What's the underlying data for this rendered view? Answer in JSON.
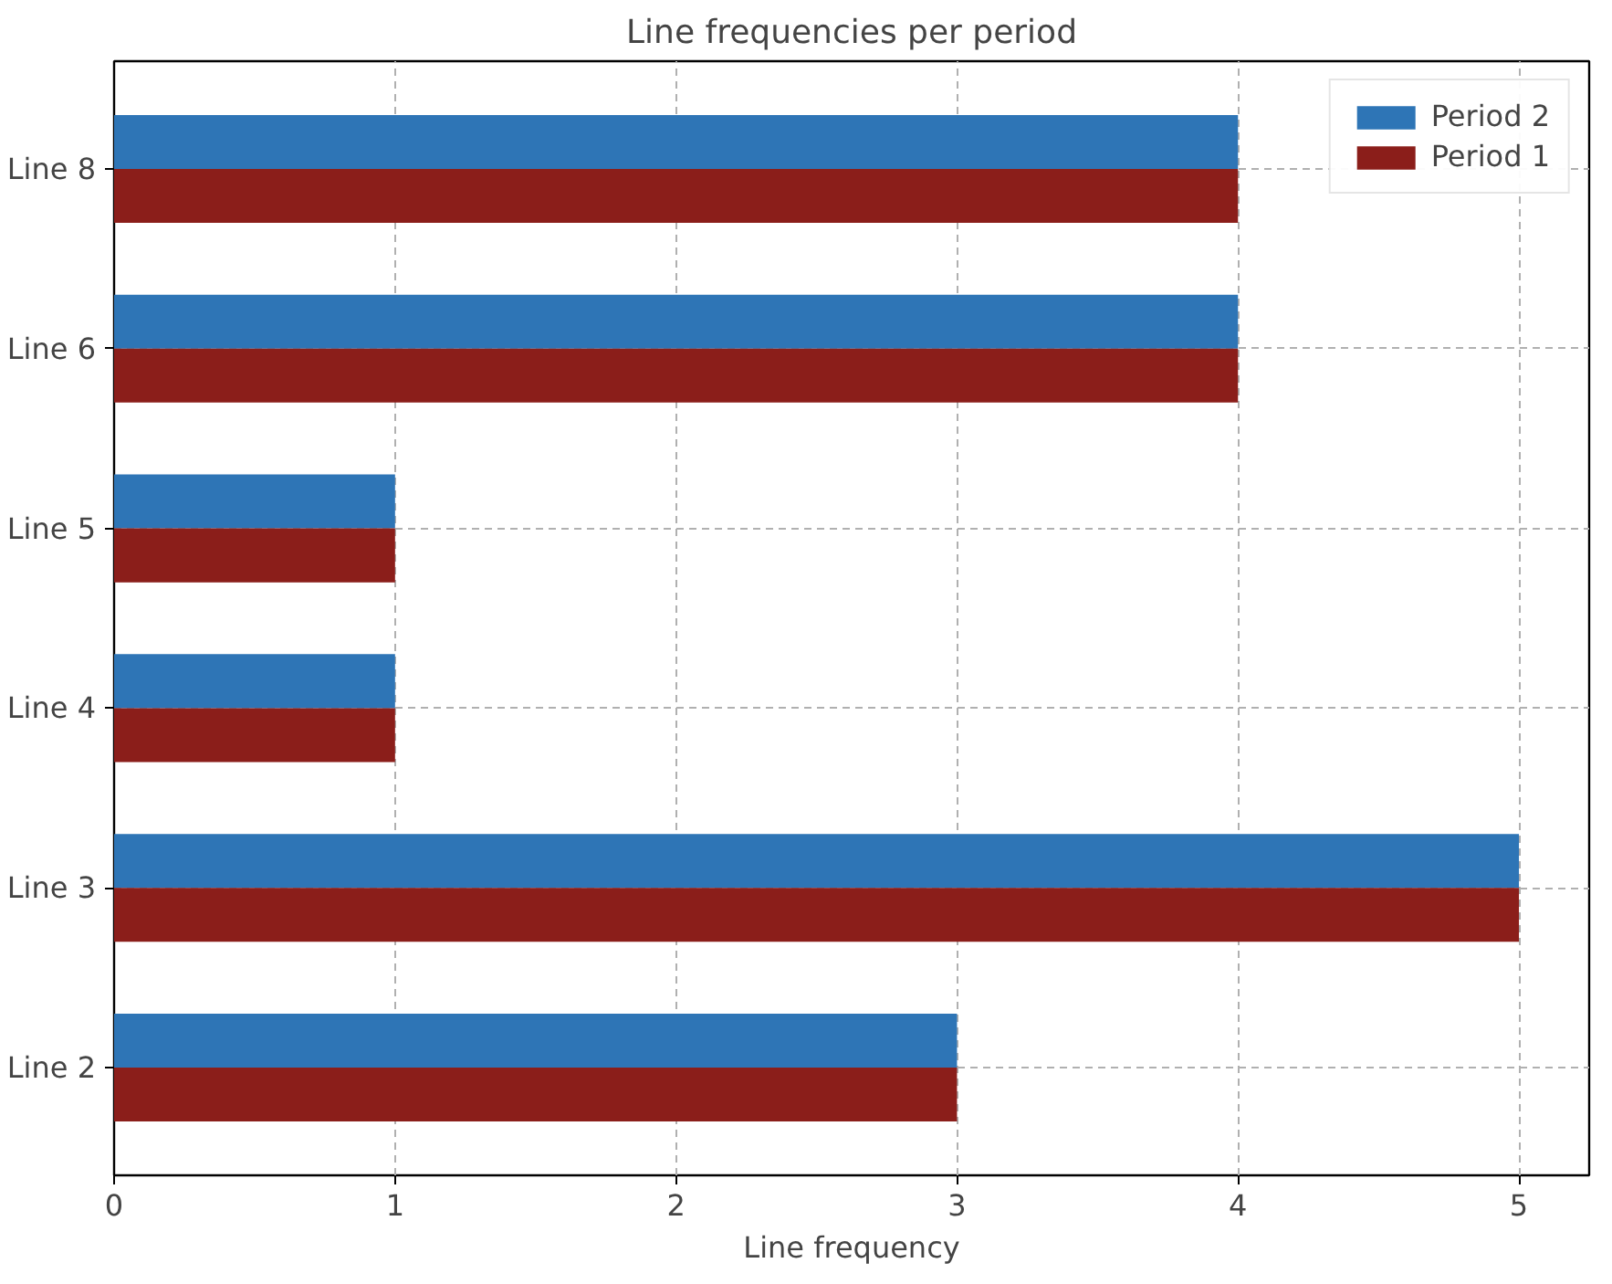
{
  "chart_data": {
    "type": "bar",
    "orientation": "horizontal",
    "title": "Line frequencies per period",
    "xlabel": "Line frequency",
    "categories": [
      "Line 8",
      "Line 6",
      "Line 5",
      "Line 4",
      "Line 3",
      "Line 2"
    ],
    "series": [
      {
        "name": "Period 2",
        "color": "#2e75b6",
        "values": [
          4,
          4,
          1,
          1,
          5,
          3
        ]
      },
      {
        "name": "Period 1",
        "color": "#8b1e1a",
        "values": [
          4,
          4,
          1,
          1,
          5,
          3
        ]
      }
    ],
    "xlim": [
      0,
      5.25
    ],
    "xticks": [
      0,
      1,
      2,
      3,
      4,
      5
    ],
    "grid": true,
    "legend": "top right",
    "line_style": "dashed"
  }
}
